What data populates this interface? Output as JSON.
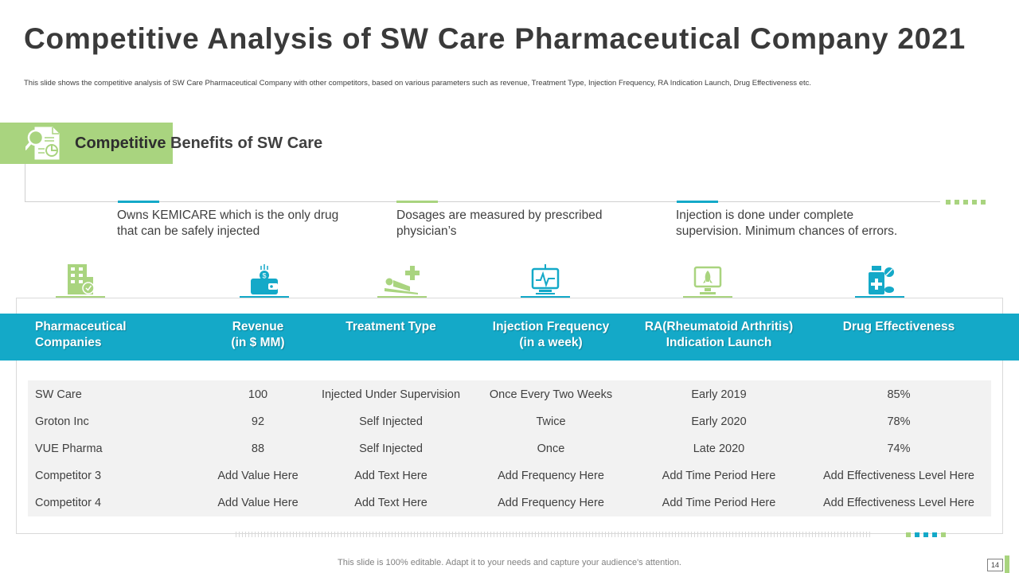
{
  "title": "Competitive Analysis of SW Care Pharmaceutical Company 2021",
  "subtitle": "This slide shows the competitive analysis of SW Care Pharmaceutical Company  with other competitors, based on various parameters such as revenue, Treatment Type, Injection Frequency, RA Indication Launch, Drug Effectiveness etc.",
  "section": {
    "heading_highlight": "Competitive",
    "heading_rest": " Benefits of SW Care"
  },
  "benefits": [
    {
      "text": "Owns KEMICARE which is the only drug that can be safely injected",
      "accent": "#14a9c8"
    },
    {
      "text": "Dosages are measured by prescribed physician’s",
      "accent": "#a9d47f"
    },
    {
      "text": "Injection  is done under complete supervision. Minimum chances of errors.",
      "accent": "#14a9c8"
    }
  ],
  "column_icons": [
    {
      "icon": "building-icon",
      "accent": "#a9d47f"
    },
    {
      "icon": "wallet-icon",
      "accent": "#14a9c8"
    },
    {
      "icon": "patient-bed-icon",
      "accent": "#a9d47f"
    },
    {
      "icon": "monitor-ecg-icon",
      "accent": "#14a9c8"
    },
    {
      "icon": "computer-rocket-icon",
      "accent": "#a9d47f"
    },
    {
      "icon": "medicine-bottle-icon",
      "accent": "#14a9c8"
    }
  ],
  "table": {
    "headers": [
      "Pharmaceutical\nCompanies",
      "Revenue\n(in $ MM)",
      "Treatment Type",
      "Injection Frequency\n(in a week)",
      "RA(Rheumatoid Arthritis)\nIndication Launch",
      "Drug Effectiveness"
    ],
    "rows": [
      [
        "SW Care",
        "100",
        "Injected Under Supervision",
        "Once Every Two Weeks",
        "Early 2019",
        "85%"
      ],
      [
        "Groton Inc",
        "92",
        "Self Injected",
        "Twice",
        "Early 2020",
        "78%"
      ],
      [
        "VUE Pharma",
        "88",
        "Self Injected",
        "Once",
        "Late 2020",
        "74%"
      ],
      [
        "Competitor 3",
        "Add Value Here",
        "Add Text Here",
        "Add Frequency Here",
        "Add Time Period Here",
        "Add Effectiveness Level Here"
      ],
      [
        "Competitor 4",
        "Add Value Here",
        "Add Text Here",
        "Add Frequency Here",
        "Add Time Period Here",
        "Add Effectiveness Level Here"
      ]
    ]
  },
  "footer": "This slide is 100% editable. Adapt it to your needs and capture your audience's attention.",
  "page_number": "14",
  "colors": {
    "green": "#a9d47f",
    "blue": "#14a9c8"
  }
}
